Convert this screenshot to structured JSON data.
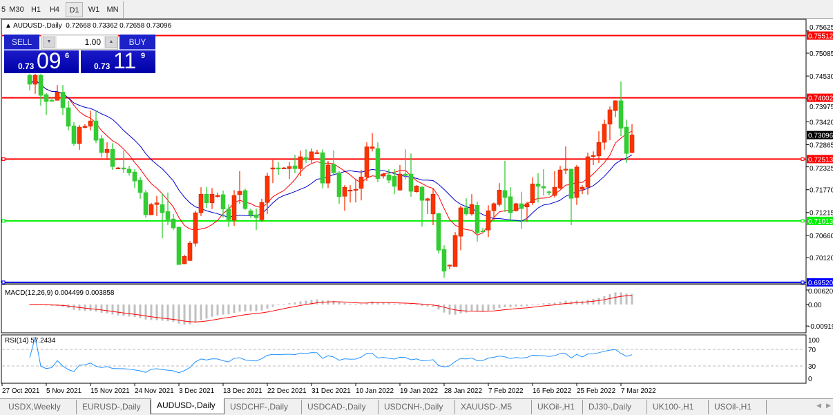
{
  "toolbar": {
    "timeframes": [
      "5",
      "M30",
      "H1",
      "H4",
      "D1",
      "W1",
      "MN"
    ],
    "active": "D1"
  },
  "chart": {
    "symbol": "AUDUSD-,Daily",
    "ohlc": "0.72668 0.73362 0.72658 0.73096",
    "candle_up_color": "#ff3300",
    "candle_down_color": "#33cc33",
    "ma_fast_color": "#ff0000",
    "ma_slow_color": "#0000cc",
    "price_ticks": [
      "0.75625",
      "0.75085",
      "0.74530",
      "0.73975",
      "0.73420",
      "0.72865",
      "0.72325",
      "0.71770",
      "0.71215",
      "0.70660",
      "0.70120"
    ],
    "current_price": "0.73096",
    "levels": [
      {
        "price": "0.75512",
        "color": "#ff0000"
      },
      {
        "price": "0.74002",
        "color": "#ff0000"
      },
      {
        "price": "0.72513",
        "color": "#ff0000"
      },
      {
        "price": "0.71013",
        "color": "#00ee00"
      },
      {
        "price": "0.69520",
        "color": "#0000ff"
      }
    ],
    "candles_ohlc": [
      [
        0.7455,
        0.7458,
        0.7418,
        0.7433
      ],
      [
        0.7433,
        0.7458,
        0.741,
        0.7455
      ],
      [
        0.7455,
        0.7458,
        0.7381,
        0.7406
      ],
      [
        0.7408,
        0.7411,
        0.7358,
        0.7391
      ],
      [
        0.7394,
        0.7401,
        0.7393,
        0.7393
      ],
      [
        0.7394,
        0.7431,
        0.7394,
        0.7414
      ],
      [
        0.7414,
        0.7431,
        0.7358,
        0.7376
      ],
      [
        0.7376,
        0.7393,
        0.7321,
        0.7331
      ],
      [
        0.7332,
        0.7341,
        0.7284,
        0.7289
      ],
      [
        0.7289,
        0.7334,
        0.7274,
        0.7329
      ],
      [
        0.7328,
        0.7336,
        0.7326,
        0.7331
      ],
      [
        0.7331,
        0.7369,
        0.7321,
        0.7344
      ],
      [
        0.7344,
        0.7368,
        0.729,
        0.7297
      ],
      [
        0.7301,
        0.7309,
        0.7255,
        0.7267
      ],
      [
        0.7267,
        0.7292,
        0.7249,
        0.7275
      ],
      [
        0.7275,
        0.729,
        0.7225,
        0.7233
      ],
      [
        0.7228,
        0.7232,
        0.7227,
        0.723
      ],
      [
        0.723,
        0.7272,
        0.7218,
        0.7227
      ],
      [
        0.7227,
        0.7235,
        0.7211,
        0.7218
      ],
      [
        0.722,
        0.7227,
        0.7181,
        0.7198
      ],
      [
        0.72,
        0.7208,
        0.7155,
        0.717
      ],
      [
        0.717,
        0.7176,
        0.7109,
        0.7116
      ],
      [
        0.7116,
        0.7145,
        0.7116,
        0.7141
      ],
      [
        0.7141,
        0.7162,
        0.7113,
        0.7145
      ],
      [
        0.7141,
        0.7168,
        0.7059,
        0.7121
      ],
      [
        0.7124,
        0.717,
        0.7091,
        0.7104
      ],
      [
        0.7106,
        0.7118,
        0.7079,
        0.7084
      ],
      [
        0.7086,
        0.7087,
        0.6995,
        0.6995
      ],
      [
        0.6997,
        0.7019,
        0.6997,
        0.7015
      ],
      [
        0.7005,
        0.7052,
        0.7004,
        0.7047
      ],
      [
        0.7047,
        0.7126,
        0.7039,
        0.7121
      ],
      [
        0.7121,
        0.7183,
        0.7113,
        0.7166
      ],
      [
        0.7166,
        0.7183,
        0.7133,
        0.7145
      ],
      [
        0.7145,
        0.7181,
        0.713,
        0.7166
      ],
      [
        0.716,
        0.717,
        0.7158,
        0.7163
      ],
      [
        0.7165,
        0.7175,
        0.7109,
        0.713
      ],
      [
        0.713,
        0.7141,
        0.7086,
        0.7104
      ],
      [
        0.7103,
        0.7176,
        0.7089,
        0.7163
      ],
      [
        0.7165,
        0.7222,
        0.7143,
        0.7173
      ],
      [
        0.7175,
        0.718,
        0.7128,
        0.7131
      ],
      [
        0.7126,
        0.7131,
        0.7108,
        0.7116
      ],
      [
        0.7116,
        0.7131,
        0.7079,
        0.7109
      ],
      [
        0.7104,
        0.7155,
        0.7099,
        0.7146
      ],
      [
        0.7146,
        0.7218,
        0.7118,
        0.721
      ],
      [
        0.7227,
        0.7249,
        0.7193,
        0.723
      ],
      [
        0.723,
        0.7244,
        0.7213,
        0.7227
      ],
      [
        0.723,
        0.7232,
        0.7228,
        0.723
      ],
      [
        0.7228,
        0.7244,
        0.7203,
        0.7233
      ],
      [
        0.7235,
        0.7262,
        0.7217,
        0.7228
      ],
      [
        0.7228,
        0.7272,
        0.721,
        0.7257
      ],
      [
        0.7255,
        0.7275,
        0.7242,
        0.725
      ],
      [
        0.7249,
        0.7277,
        0.7242,
        0.7269
      ],
      [
        0.7265,
        0.7274,
        0.7264,
        0.7267
      ],
      [
        0.7267,
        0.7275,
        0.718,
        0.7193
      ],
      [
        0.7193,
        0.7247,
        0.7181,
        0.7237
      ],
      [
        0.7239,
        0.7272,
        0.7211,
        0.7218
      ],
      [
        0.7218,
        0.7222,
        0.7143,
        0.716
      ],
      [
        0.7161,
        0.7188,
        0.7126,
        0.7183
      ],
      [
        0.7176,
        0.7188,
        0.7146,
        0.7176
      ],
      [
        0.7176,
        0.7202,
        0.7146,
        0.7178
      ],
      [
        0.718,
        0.7225,
        0.7151,
        0.7208
      ],
      [
        0.7208,
        0.7292,
        0.7198,
        0.7281
      ],
      [
        0.7277,
        0.7314,
        0.727,
        0.7281
      ],
      [
        0.7277,
        0.7292,
        0.7195,
        0.7204
      ],
      [
        0.721,
        0.7218,
        0.7204,
        0.7215
      ],
      [
        0.7213,
        0.7227,
        0.7193,
        0.72
      ],
      [
        0.721,
        0.7227,
        0.7166,
        0.7185
      ],
      [
        0.7176,
        0.7237,
        0.7175,
        0.7215
      ],
      [
        0.7215,
        0.7275,
        0.7202,
        0.7211
      ],
      [
        0.7215,
        0.7265,
        0.716,
        0.7173
      ],
      [
        0.7172,
        0.7188,
        0.717,
        0.7186
      ],
      [
        0.7183,
        0.7186,
        0.7087,
        0.7151
      ],
      [
        0.7151,
        0.7158,
        0.7118,
        0.7155
      ],
      [
        0.7118,
        0.7181,
        0.7091,
        0.7166
      ],
      [
        0.7119,
        0.7121,
        0.7022,
        0.703
      ],
      [
        0.7032,
        0.7042,
        0.6963,
        0.6979
      ],
      [
        0.6992,
        0.6995,
        0.6984,
        0.6994
      ],
      [
        0.699,
        0.7074,
        0.699,
        0.7066
      ],
      [
        0.7064,
        0.7138,
        0.703,
        0.7133
      ],
      [
        0.7133,
        0.7156,
        0.7114,
        0.7118
      ],
      [
        0.7118,
        0.7166,
        0.7114,
        0.7141
      ],
      [
        0.7139,
        0.7148,
        0.7051,
        0.7072
      ],
      [
        0.7077,
        0.7084,
        0.7074,
        0.7076
      ],
      [
        0.7079,
        0.7139,
        0.7062,
        0.7126
      ],
      [
        0.7126,
        0.7146,
        0.7103,
        0.7143
      ],
      [
        0.7141,
        0.7193,
        0.7136,
        0.7176
      ],
      [
        0.7175,
        0.7247,
        0.7123,
        0.7158
      ],
      [
        0.716,
        0.7183,
        0.7104,
        0.7121
      ],
      [
        0.7126,
        0.7145,
        0.7124,
        0.7143
      ],
      [
        0.7143,
        0.7172,
        0.7082,
        0.7131
      ],
      [
        0.7135,
        0.7148,
        0.7099,
        0.7143
      ],
      [
        0.7145,
        0.7207,
        0.714,
        0.7191
      ],
      [
        0.7191,
        0.7217,
        0.7146,
        0.7185
      ],
      [
        0.7185,
        0.7227,
        0.7163,
        0.7181
      ],
      [
        0.7172,
        0.7175,
        0.7163,
        0.717
      ],
      [
        0.7163,
        0.7222,
        0.7158,
        0.7183
      ],
      [
        0.7181,
        0.7235,
        0.7178,
        0.7225
      ],
      [
        0.7225,
        0.7282,
        0.7215,
        0.7227
      ],
      [
        0.7227,
        0.7228,
        0.7091,
        0.7156
      ],
      [
        0.7158,
        0.7237,
        0.714,
        0.7232
      ],
      [
        0.7178,
        0.7188,
        0.7166,
        0.7183
      ],
      [
        0.7183,
        0.7267,
        0.7165,
        0.7257
      ],
      [
        0.7259,
        0.727,
        0.7237,
        0.726
      ],
      [
        0.7259,
        0.7319,
        0.7242,
        0.7292
      ],
      [
        0.7292,
        0.7347,
        0.7274,
        0.7336
      ],
      [
        0.7336,
        0.7379,
        0.7297,
        0.7371
      ],
      [
        0.7369,
        0.7394,
        0.7353,
        0.7393
      ],
      [
        0.7393,
        0.744,
        0.7307,
        0.7326
      ],
      [
        0.7329,
        0.7347,
        0.7242,
        0.7265
      ],
      [
        0.7267,
        0.7336,
        0.7266,
        0.731
      ]
    ],
    "dates": [
      "27 Oct 2021",
      "5 Nov 2021",
      "15 Nov 2021",
      "24 Nov 2021",
      "3 Dec 2021",
      "13 Dec 2021",
      "22 Dec 2021",
      "31 Dec 2021",
      "10 Jan 2022",
      "19 Jan 2022",
      "28 Jan 2022",
      "7 Feb 2022",
      "16 Feb 2022",
      "25 Feb 2022",
      "7 Mar 2022"
    ]
  },
  "trade": {
    "sell_label": "SELL",
    "buy_label": "BUY",
    "lot": "1.00",
    "sell_prefix": "0.73",
    "sell_big": "09",
    "sell_pip": "6",
    "buy_prefix": "0.73",
    "buy_big": "11",
    "buy_pip": "9"
  },
  "macd": {
    "label": "MACD(12,26,9) 0.004499 0.003858",
    "ticks": [
      "0.006201",
      "0.00",
      "-0.00919"
    ],
    "hist_color": "#c0c0c0",
    "signal_color": "#ff0000"
  },
  "rsi": {
    "label": "RSI(14) 57.2434",
    "value": 57.2434,
    "ticks": [
      "100",
      "70",
      "30",
      "0"
    ],
    "color": "#1e90ff"
  },
  "tabs": [
    "USDX,Weekly",
    "EURUSD-,Daily",
    "AUDUSD-,Daily",
    "USDCHF-,Daily",
    "USDCAD-,Daily",
    "USDCNH-,Daily",
    "XAUUSD-,M5",
    "UKOil-,H1",
    "DJ30-,Daily",
    "UK100-,H1",
    "USOil-,H1"
  ],
  "active_tab": "AUDUSD-,Daily"
}
